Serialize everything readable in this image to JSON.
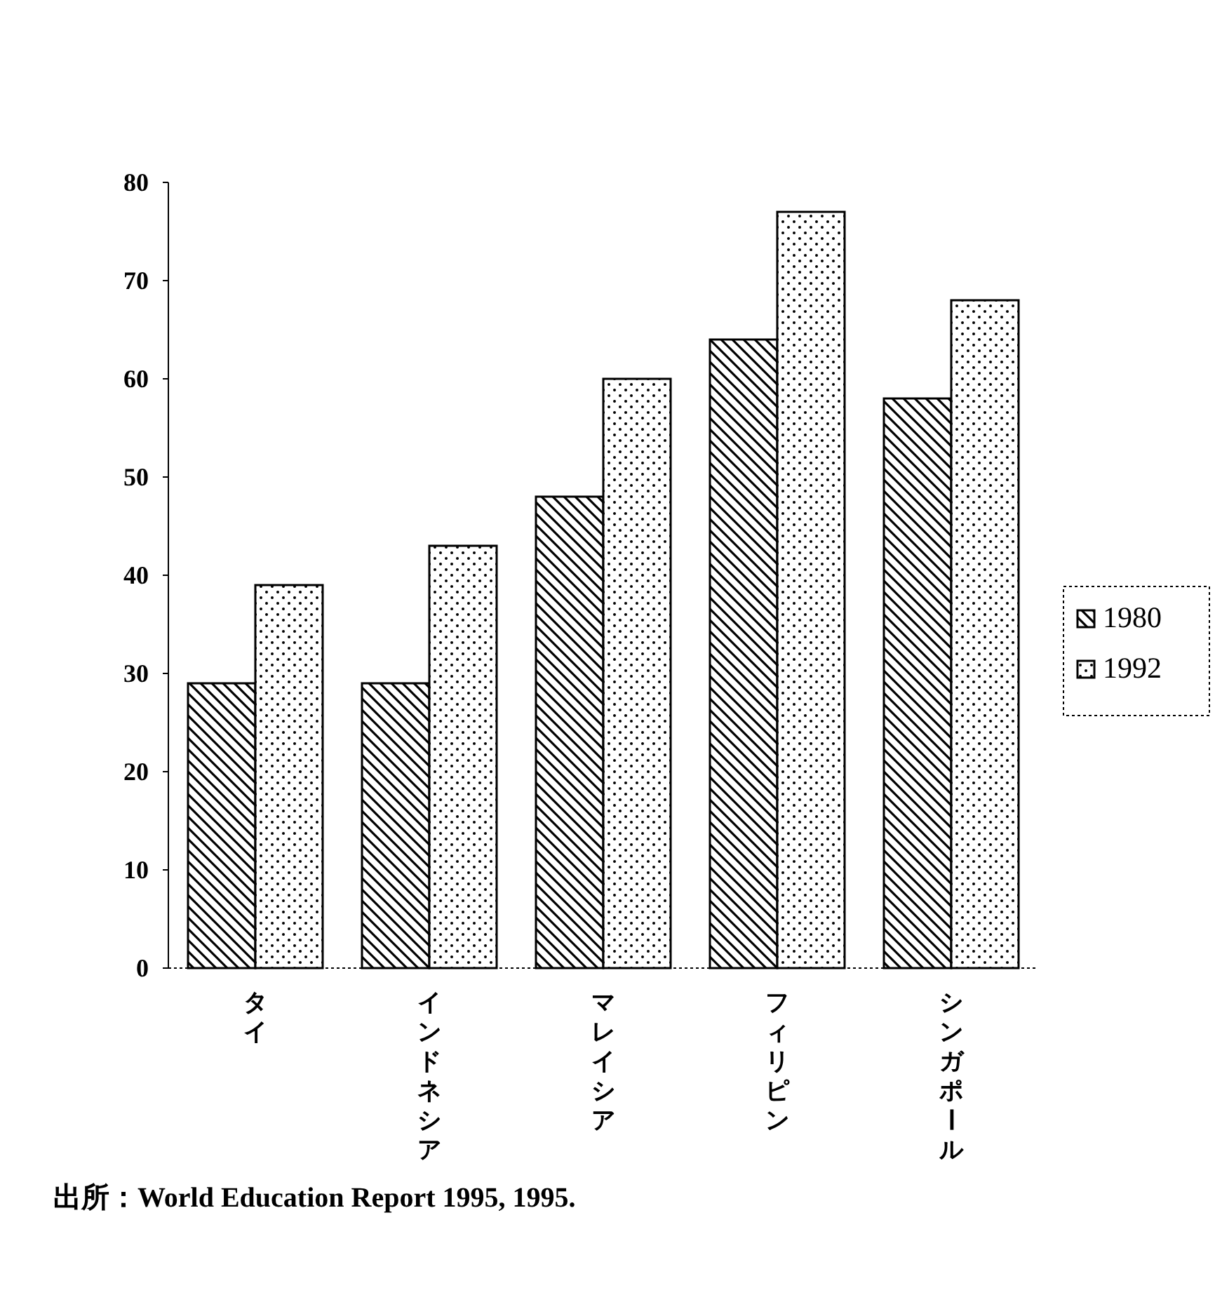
{
  "chart_data": {
    "type": "bar",
    "categories": [
      "タイ",
      "インドネシア",
      "マレイシア",
      "フィリピン",
      "シンガポール"
    ],
    "series": [
      {
        "name": "1980",
        "color": "#000000",
        "values": [
          29,
          29,
          48,
          64,
          58
        ]
      },
      {
        "name": "1992",
        "color": "#000000",
        "values": [
          39,
          43,
          60,
          77,
          68
        ]
      }
    ],
    "ylim": [
      0,
      80
    ],
    "yticks": [
      0,
      10,
      20,
      30,
      40,
      50,
      60,
      70,
      80
    ],
    "grid": false,
    "legend": "right",
    "annotations": [
      "出所：World Education Report 1995, 1995."
    ]
  }
}
